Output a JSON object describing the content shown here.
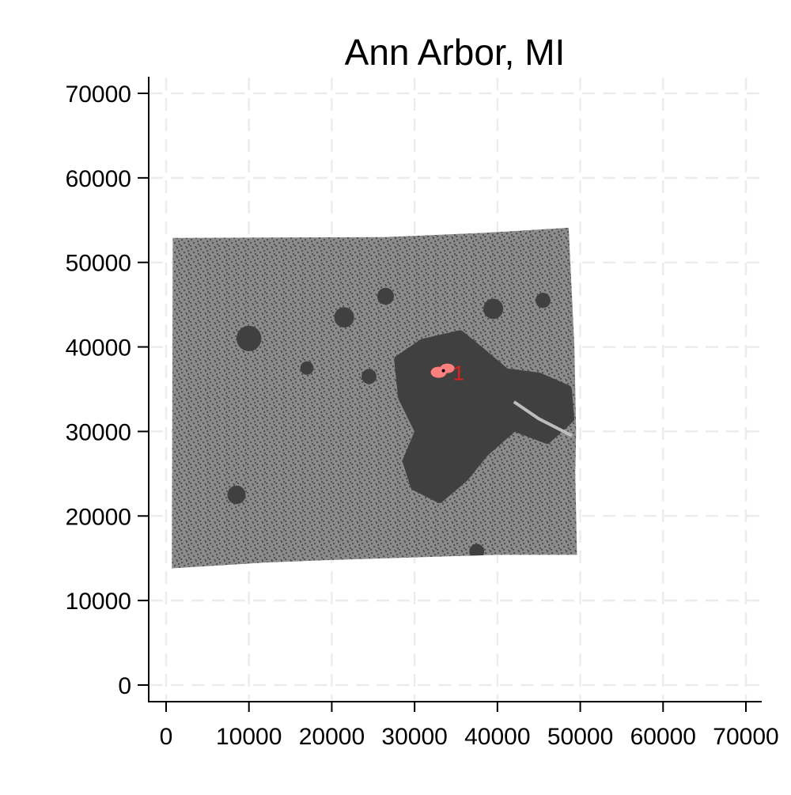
{
  "title": "Ann Arbor, MI",
  "axes": {
    "x": {
      "min": 0,
      "max": 70000,
      "ticks": [
        0,
        10000,
        20000,
        30000,
        40000,
        50000,
        60000,
        70000
      ],
      "tick_labels": [
        "0",
        "10000",
        "20000",
        "30000",
        "40000",
        "50000",
        "60000",
        "70000"
      ]
    },
    "y": {
      "min": 0,
      "max": 70000,
      "ticks": [
        0,
        10000,
        20000,
        30000,
        40000,
        50000,
        60000,
        70000
      ],
      "tick_labels": [
        "0",
        "10000",
        "20000",
        "30000",
        "40000",
        "50000",
        "60000",
        "70000"
      ]
    },
    "grid": true,
    "grid_style": "dashed"
  },
  "map": {
    "region_color": "#8c8c8c",
    "dense_color": "#404040",
    "light_color": "#bdbdbd",
    "marker_color": "#ff7f7f",
    "region_outline": [
      [
        800,
        52900
      ],
      [
        26500,
        53000
      ],
      [
        38500,
        53500
      ],
      [
        48600,
        54100
      ],
      [
        48800,
        50000
      ],
      [
        49300,
        40000
      ],
      [
        49500,
        30000
      ],
      [
        49400,
        25000
      ],
      [
        49600,
        15400
      ],
      [
        40000,
        15400
      ],
      [
        30000,
        15100
      ],
      [
        20000,
        14800
      ],
      [
        12000,
        14500
      ],
      [
        700,
        13800
      ]
    ],
    "urban_core": [
      [
        28000,
        38500
      ],
      [
        31000,
        40500
      ],
      [
        35500,
        41500
      ],
      [
        38000,
        39500
      ],
      [
        41000,
        37000
      ],
      [
        45000,
        36500
      ],
      [
        48500,
        35000
      ],
      [
        48800,
        31500
      ],
      [
        46000,
        29000
      ],
      [
        42000,
        30500
      ],
      [
        38500,
        27500
      ],
      [
        36000,
        24500
      ],
      [
        33000,
        22000
      ],
      [
        30000,
        23500
      ],
      [
        29000,
        26500
      ],
      [
        30500,
        30000
      ],
      [
        28500,
        34000
      ]
    ],
    "dense_clusters": [
      {
        "x": 10000,
        "y": 41000,
        "r": 1500
      },
      {
        "x": 21500,
        "y": 43500,
        "r": 1200
      },
      {
        "x": 8500,
        "y": 22500,
        "r": 1100
      },
      {
        "x": 37500,
        "y": 15800,
        "r": 900
      },
      {
        "x": 26500,
        "y": 46000,
        "r": 1000
      },
      {
        "x": 39500,
        "y": 44500,
        "r": 1200
      },
      {
        "x": 45500,
        "y": 45500,
        "r": 900
      },
      {
        "x": 17000,
        "y": 37500,
        "r": 800
      },
      {
        "x": 24500,
        "y": 36500,
        "r": 900
      }
    ],
    "river": [
      [
        42000,
        33500
      ],
      [
        45000,
        31500
      ],
      [
        47000,
        30500
      ],
      [
        49000,
        29500
      ]
    ],
    "marker": {
      "x": 33000,
      "y": 37000,
      "label": "1"
    }
  }
}
